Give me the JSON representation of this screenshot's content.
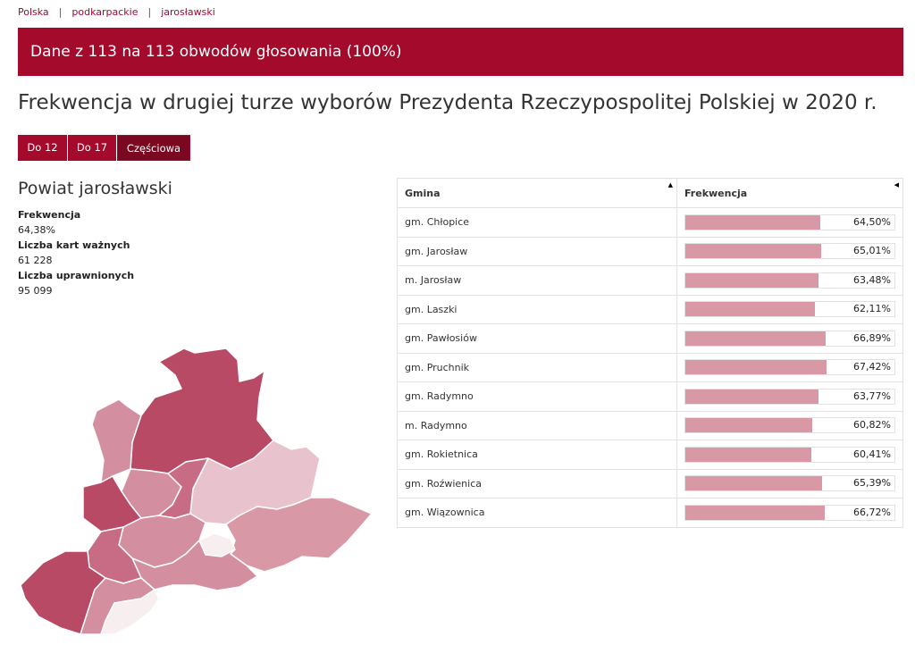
{
  "breadcrumb": {
    "items": [
      "Polska",
      "podkarpackie",
      "jarosławski"
    ],
    "separator": "|"
  },
  "banner": {
    "text": "Dane z 113 na 113 obwodów głosowania (100%)"
  },
  "title": "Frekwencja w drugiej turze wyborów Prezydenta Rzeczypospolitej Polskiej w 2020 r.",
  "tabs": [
    {
      "label": "Do 12",
      "active": false
    },
    {
      "label": "Do 17",
      "active": false
    },
    {
      "label": "Częściowa",
      "active": true
    }
  ],
  "district": {
    "name": "Powiat jarosławski",
    "stats": [
      {
        "label": "Frekwencja",
        "value": "64,38%"
      },
      {
        "label": "Liczba kart ważnych",
        "value": "61 228"
      },
      {
        "label": "Liczba uprawnionych",
        "value": "95 099"
      }
    ]
  },
  "table": {
    "headers": {
      "gmina": "Gmina",
      "frekwencja": "Frekwencja"
    },
    "rows": [
      {
        "gmina": "gm. Chłopice",
        "frekwencja": "64,50%",
        "value": 64.5
      },
      {
        "gmina": "gm. Jarosław",
        "frekwencja": "65,01%",
        "value": 65.01
      },
      {
        "gmina": "m. Jarosław",
        "frekwencja": "63,48%",
        "value": 63.48
      },
      {
        "gmina": "gm. Laszki",
        "frekwencja": "62,11%",
        "value": 62.11
      },
      {
        "gmina": "gm. Pawłosiów",
        "frekwencja": "66,89%",
        "value": 66.89
      },
      {
        "gmina": "gm. Pruchnik",
        "frekwencja": "67,42%",
        "value": 67.42
      },
      {
        "gmina": "gm. Radymno",
        "frekwencja": "63,77%",
        "value": 63.77
      },
      {
        "gmina": "m. Radymno",
        "frekwencja": "60,82%",
        "value": 60.82
      },
      {
        "gmina": "gm. Rokietnica",
        "frekwencja": "60,41%",
        "value": 60.41
      },
      {
        "gmina": "gm. Roźwienica",
        "frekwencja": "65,39%",
        "value": 65.39
      },
      {
        "gmina": "gm. Wiązownica",
        "frekwencja": "66,72%",
        "value": 66.72
      }
    ]
  },
  "colors": {
    "brand": "#a30a2c",
    "bar": "#d898a6",
    "map_dark": "#b84a66",
    "map_mid": "#d38ea0",
    "map_light": "#e8c3cd",
    "map_lightest": "#f7eeef"
  }
}
